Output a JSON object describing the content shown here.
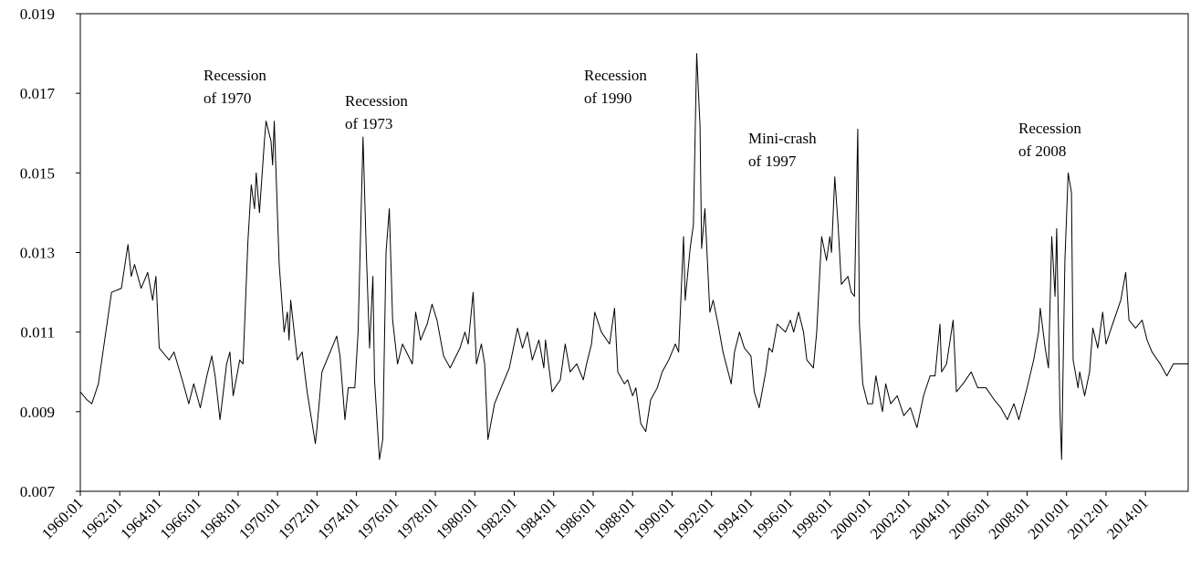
{
  "chart_data": {
    "type": "line",
    "color": "#000000",
    "annotations": [
      [
        "Recession",
        "of 1970"
      ],
      [
        "Recession",
        "of 1973"
      ],
      [
        "Recession",
        "of 1990"
      ],
      [
        "Mini-crash",
        "of 1997"
      ],
      [
        "Recession",
        "of 2008"
      ]
    ],
    "x": [
      "1960:01",
      "1960:05",
      "1960:08",
      "1960:12",
      "1961:08",
      "1962:02",
      "1962:06",
      "1962:08",
      "1962:10",
      "1963:02",
      "1963:06",
      "1963:09",
      "1963:11",
      "1964:01",
      "1964:07",
      "1964:10",
      "1965:03",
      "1965:07",
      "1965:10",
      "1966:02",
      "1966:06",
      "1966:09",
      "1966:11",
      "1967:02",
      "1967:06",
      "1967:08",
      "1967:10",
      "1968:02",
      "1968:04",
      "1968:07",
      "1968:09",
      "1968:11",
      "1968:12",
      "1969:02",
      "1969:05",
      "1969:06",
      "1969:09",
      "1969:10",
      "1969:11",
      "1970:02",
      "1970:05",
      "1970:07",
      "1970:08",
      "1970:09",
      "1971:01",
      "1971:04",
      "1971:07",
      "1971:12",
      "1972:01",
      "1972:04",
      "1972:08",
      "1973:01",
      "1973:03",
      "1973:06",
      "1973:08",
      "1973:12",
      "1974:02",
      "1974:05",
      "1974:07",
      "1974:09",
      "1974:11",
      "1974:12",
      "1975:03",
      "1975:05",
      "1975:07",
      "1975:09",
      "1975:11",
      "1976:02",
      "1976:05",
      "1976:11",
      "1977:01",
      "1977:04",
      "1977:08",
      "1977:11",
      "1978:02",
      "1978:06",
      "1978:10",
      "1979:04",
      "1979:07",
      "1979:09",
      "1979:12",
      "1980:02",
      "1980:05",
      "1980:07",
      "1980:09",
      "1981:01",
      "1981:07",
      "1981:10",
      "1982:03",
      "1982:06",
      "1982:09",
      "1982:12",
      "1983:04",
      "1983:07",
      "1983:08",
      "1983:12",
      "1984:05",
      "1984:08",
      "1984:11",
      "1985:03",
      "1985:07",
      "1985:09",
      "1985:12",
      "1986:02",
      "1986:06",
      "1986:11",
      "1987:02",
      "1987:04",
      "1987:08",
      "1987:10",
      "1988:01",
      "1988:03",
      "1988:06",
      "1988:09",
      "1988:12",
      "1989:04",
      "1989:07",
      "1989:11",
      "1990:03",
      "1990:05",
      "1990:08",
      "1990:09",
      "1990:12",
      "1991:02",
      "1991:04",
      "1991:06",
      "1991:07",
      "1991:09",
      "1991:12",
      "1992:02",
      "1992:05",
      "1992:08",
      "1993:01",
      "1993:03",
      "1993:06",
      "1993:09",
      "1994:01",
      "1994:03",
      "1994:06",
      "1994:10",
      "1994:12",
      "1995:02",
      "1995:05",
      "1995:10",
      "1996:01",
      "1996:03",
      "1996:06",
      "1996:09",
      "1996:11",
      "1997:03",
      "1997:05",
      "1997:08",
      "1997:11",
      "1998:01",
      "1998:02",
      "1998:04",
      "1998:06",
      "1998:08",
      "1998:12",
      "1999:02",
      "1999:04",
      "1999:06",
      "1999:07",
      "1999:09",
      "1999:12",
      "2000:03",
      "2000:05",
      "2000:09",
      "2000:11",
      "2001:02",
      "2001:06",
      "2001:10",
      "2002:02",
      "2002:06",
      "2002:10",
      "2003:02",
      "2003:05",
      "2003:08",
      "2003:09",
      "2003:12",
      "2004:04",
      "2004:06",
      "2004:10",
      "2005:03",
      "2005:07",
      "2005:12",
      "2006:05",
      "2006:09",
      "2007:01",
      "2007:05",
      "2007:08",
      "2008:01",
      "2008:05",
      "2008:08",
      "2008:09",
      "2008:12",
      "2009:02",
      "2009:04",
      "2009:06",
      "2009:07",
      "2009:09",
      "2009:10",
      "2009:12",
      "2010:02",
      "2010:04",
      "2010:05",
      "2010:08",
      "2010:09",
      "2010:12",
      "2011:03",
      "2011:05",
      "2011:08",
      "2011:11",
      "2012:01",
      "2012:05",
      "2012:10",
      "2013:01",
      "2013:03",
      "2013:07",
      "2013:11",
      "2014:02",
      "2014:05",
      "2014:10",
      "2015:02",
      "2015:06",
      "2016:03"
    ],
    "values": [
      0.0095,
      0.0093,
      0.0092,
      0.0097,
      0.012,
      0.0121,
      0.0132,
      0.0124,
      0.0127,
      0.0121,
      0.0125,
      0.0118,
      0.0124,
      0.0106,
      0.0103,
      0.0105,
      0.0098,
      0.0092,
      0.0097,
      0.0091,
      0.0099,
      0.0104,
      0.0099,
      0.0088,
      0.0102,
      0.0105,
      0.0094,
      0.0103,
      0.0102,
      0.0133,
      0.0147,
      0.0141,
      0.015,
      0.014,
      0.0158,
      0.0163,
      0.0158,
      0.0152,
      0.0163,
      0.0127,
      0.011,
      0.0115,
      0.0108,
      0.0118,
      0.0103,
      0.0105,
      0.0095,
      0.0082,
      0.0086,
      0.01,
      0.0104,
      0.0109,
      0.0104,
      0.0088,
      0.0096,
      0.0096,
      0.011,
      0.0159,
      0.013,
      0.0106,
      0.0124,
      0.0098,
      0.0078,
      0.0083,
      0.013,
      0.0141,
      0.0113,
      0.0102,
      0.0107,
      0.0102,
      0.0115,
      0.0108,
      0.0112,
      0.0117,
      0.0113,
      0.0104,
      0.0101,
      0.0106,
      0.011,
      0.0107,
      0.012,
      0.0102,
      0.0107,
      0.0102,
      0.0083,
      0.0092,
      0.0098,
      0.0101,
      0.0111,
      0.0106,
      0.011,
      0.0103,
      0.0108,
      0.0101,
      0.0108,
      0.0095,
      0.0098,
      0.0107,
      0.01,
      0.0102,
      0.0098,
      0.0102,
      0.0107,
      0.0115,
      0.011,
      0.0107,
      0.0116,
      0.01,
      0.0097,
      0.0098,
      0.0094,
      0.0096,
      0.0087,
      0.0085,
      0.0093,
      0.0096,
      0.01,
      0.0103,
      0.0107,
      0.0105,
      0.0134,
      0.0118,
      0.0131,
      0.0137,
      0.018,
      0.0162,
      0.0131,
      0.0141,
      0.0115,
      0.0118,
      0.0112,
      0.0105,
      0.0097,
      0.0105,
      0.011,
      0.0106,
      0.0104,
      0.0095,
      0.0091,
      0.01,
      0.0106,
      0.0105,
      0.0112,
      0.011,
      0.0113,
      0.011,
      0.0115,
      0.011,
      0.0103,
      0.0101,
      0.011,
      0.0134,
      0.0128,
      0.0134,
      0.013,
      0.0149,
      0.0137,
      0.0122,
      0.0124,
      0.012,
      0.0119,
      0.0161,
      0.0112,
      0.0097,
      0.0092,
      0.0092,
      0.0099,
      0.009,
      0.0097,
      0.0092,
      0.0094,
      0.0089,
      0.0091,
      0.0086,
      0.0094,
      0.0099,
      0.0099,
      0.0112,
      0.01,
      0.0102,
      0.0113,
      0.0095,
      0.0097,
      0.01,
      0.0096,
      0.0096,
      0.0093,
      0.0091,
      0.0088,
      0.0092,
      0.0088,
      0.0096,
      0.0103,
      0.011,
      0.0116,
      0.0106,
      0.0101,
      0.0134,
      0.0119,
      0.0136,
      0.009,
      0.0078,
      0.0128,
      0.015,
      0.0145,
      0.0103,
      0.0096,
      0.01,
      0.0094,
      0.01,
      0.0111,
      0.0106,
      0.0115,
      0.0107,
      0.0112,
      0.0118,
      0.0125,
      0.0113,
      0.0111,
      0.0113,
      0.0108,
      0.0105,
      0.0102,
      0.0099,
      0.0102,
      0.0102
    ],
    "xlim": [
      "1960:01",
      "2016:03"
    ],
    "xticks": [
      "1960:01",
      "1962:01",
      "1964:01",
      "1966:01",
      "1968:01",
      "1970:01",
      "1972:01",
      "1974:01",
      "1976:01",
      "1978:01",
      "1980:01",
      "1982:01",
      "1984:01",
      "1986:01",
      "1988:01",
      "1990:01",
      "1992:01",
      "1994:01",
      "1996:01",
      "1998:01",
      "2000:01",
      "2002:01",
      "2004:01",
      "2006:01",
      "2008:01",
      "2010:01",
      "2012:01",
      "2014:01"
    ],
    "ylim": [
      0.007,
      0.019
    ],
    "yticks": [
      0.007,
      0.009,
      0.011,
      0.013,
      0.015,
      0.017,
      0.019
    ]
  }
}
